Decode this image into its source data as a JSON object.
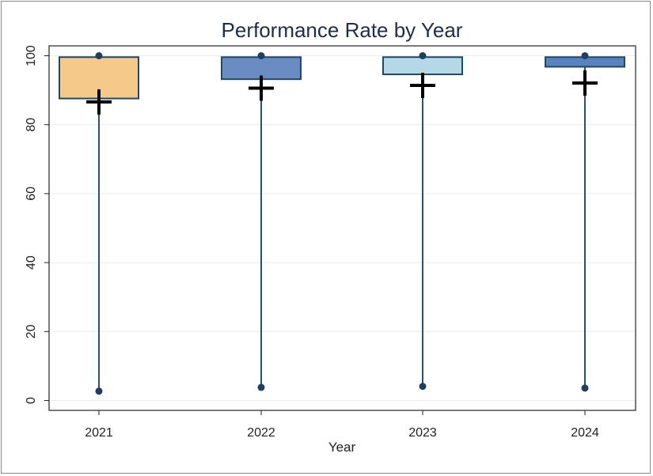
{
  "chart_data": {
    "type": "boxplot",
    "title": "Performance Rate by Year",
    "xlabel": "Year",
    "ylabel": "",
    "ylim": [
      -3,
      103
    ],
    "yticks": [
      0,
      20,
      40,
      60,
      80,
      100
    ],
    "categories": [
      "2021",
      "2022",
      "2023",
      "2024"
    ],
    "series": [
      {
        "category": "2021",
        "min": 2.7,
        "q1": 87.6,
        "median": 87.6,
        "q3": 99.6,
        "max": 100,
        "mean": 86.6,
        "color": "#f4c98a"
      },
      {
        "category": "2022",
        "min": 3.8,
        "q1": 93.2,
        "median": 93.2,
        "q3": 99.6,
        "max": 100,
        "mean": 90.6,
        "color": "#6b8bc3"
      },
      {
        "category": "2023",
        "min": 4.1,
        "q1": 94.6,
        "median": 94.6,
        "q3": 99.6,
        "max": 100,
        "mean": 91.4,
        "color": "#b5d8e6"
      },
      {
        "category": "2024",
        "min": 3.6,
        "q1": 96.8,
        "median": 96.8,
        "q3": 99.6,
        "max": 100,
        "mean": 92.1,
        "color": "#5b82c0"
      }
    ],
    "grid": true,
    "legend": "none"
  }
}
